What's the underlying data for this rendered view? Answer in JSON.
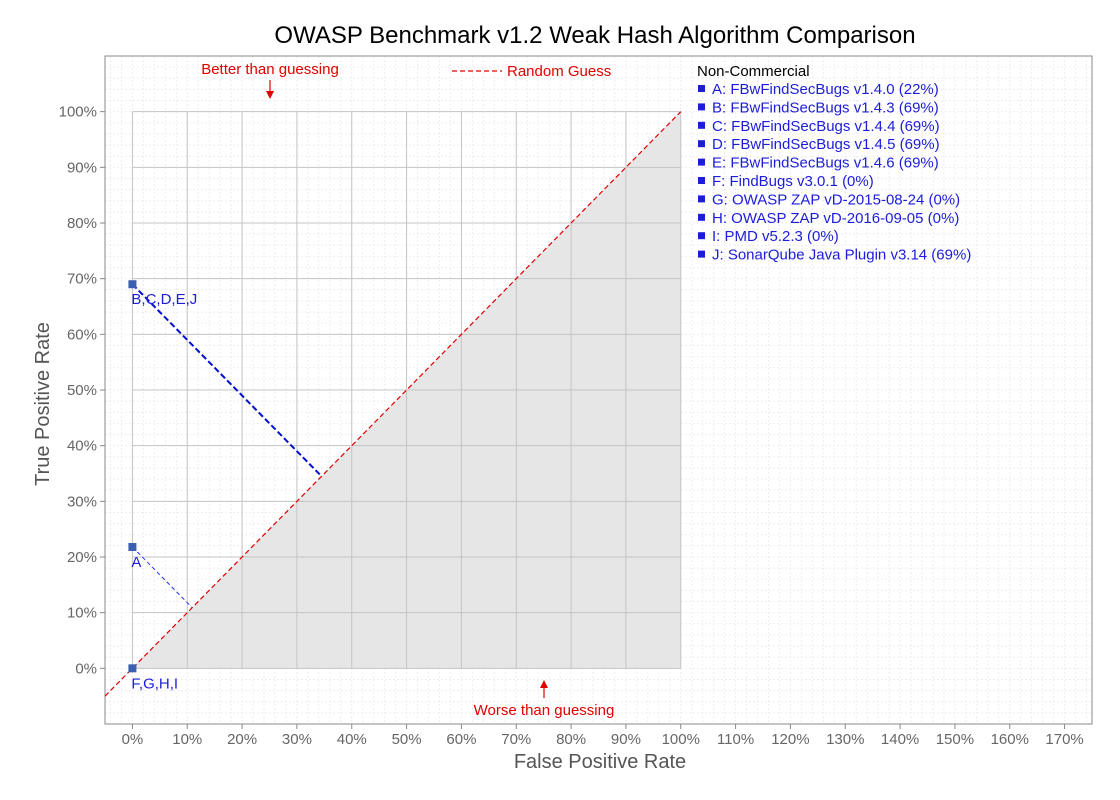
{
  "chart_data": {
    "type": "scatter",
    "title": "OWASP Benchmark v1.2 Weak Hash Algorithm Comparison",
    "xlabel": "False Positive Rate",
    "ylabel": "True Positive Rate",
    "xlim": [
      -0.05,
      1.75
    ],
    "ylim": [
      -0.1,
      1.1
    ],
    "x_ticks": [
      "0%",
      "10%",
      "20%",
      "30%",
      "40%",
      "50%",
      "60%",
      "70%",
      "80%",
      "90%",
      "100%",
      "110%",
      "120%",
      "130%",
      "140%",
      "150%",
      "160%",
      "170%"
    ],
    "y_ticks": [
      "0%",
      "10%",
      "20%",
      "30%",
      "40%",
      "50%",
      "60%",
      "70%",
      "80%",
      "90%",
      "100%"
    ],
    "grid": true,
    "reference_line": {
      "name": "Random Guess",
      "from": [
        -0.05,
        -0.05
      ],
      "to": [
        1.0,
        1.0
      ]
    },
    "annotations": {
      "better": "Better than guessing",
      "worse": "Worse than guessing"
    },
    "legend": {
      "placement": "right",
      "heading": "Non-Commercial",
      "items": [
        "A: FBwFindSecBugs v1.4.0 (22%)",
        "B: FBwFindSecBugs v1.4.3 (69%)",
        "C: FBwFindSecBugs v1.4.4 (69%)",
        "D: FBwFindSecBugs v1.4.5 (69%)",
        "E: FBwFindSecBugs v1.4.6 (69%)",
        "F: FindBugs v3.0.1 (0%)",
        "G: OWASP ZAP vD-2015-08-24 (0%)",
        "H: OWASP ZAP vD-2016-09-05 (0%)",
        "I:  PMD v5.2.3 (0%)",
        "J: SonarQube Java Plugin v3.14 (69%)"
      ]
    },
    "points": [
      {
        "label": "B,C,D,E,J",
        "x": 0.0,
        "y": 0.69
      },
      {
        "label": "A",
        "x": 0.0,
        "y": 0.218
      },
      {
        "label": "F,G,H,I",
        "x": 0.0,
        "y": 0.0
      }
    ],
    "colors": {
      "points": "#3a5fb0",
      "text": "#1d1dd9",
      "reference": "#e00000",
      "shade": "#e6e6e6"
    }
  }
}
